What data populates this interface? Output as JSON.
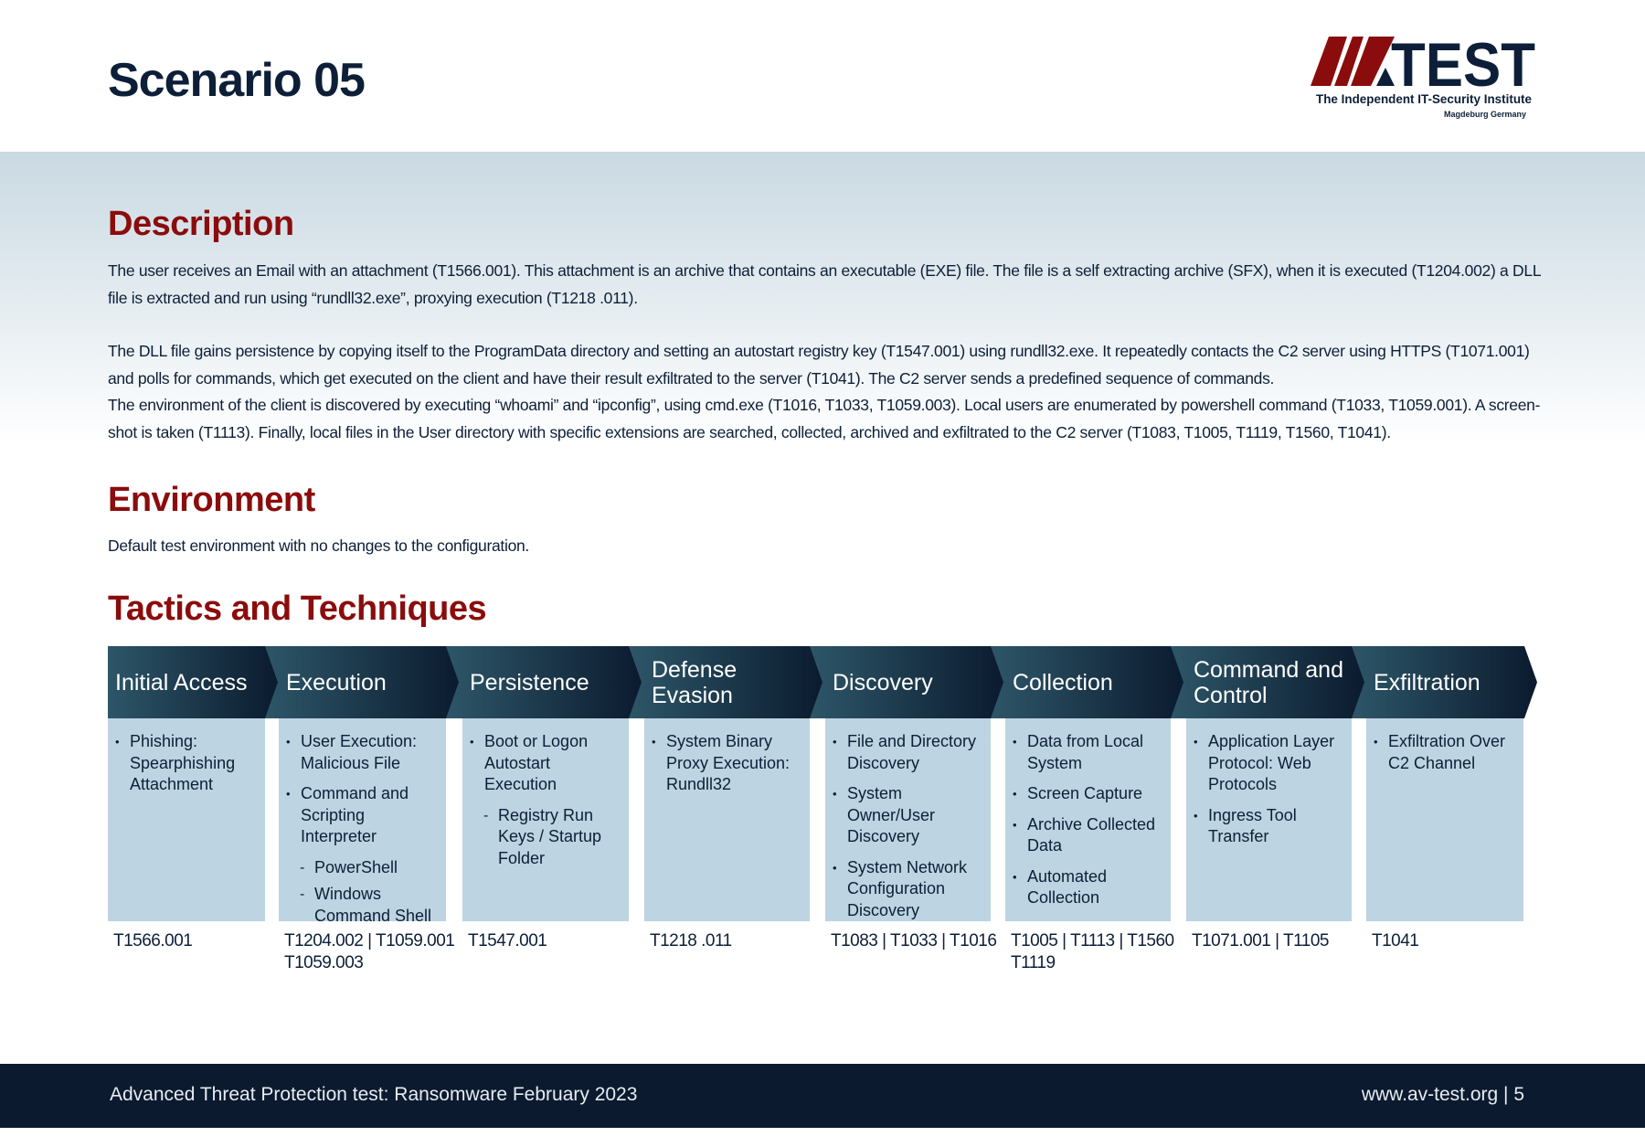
{
  "page_title": "Scenario 05",
  "logo": {
    "text": "AV-TEST",
    "tagline": "The Independent IT-Security Institute",
    "location": "Magdeburg Germany",
    "colors": {
      "red": "#8b0c0c",
      "navy": "#0d1f38"
    }
  },
  "description": {
    "heading": "Description",
    "p1": "The user receives an Email with an attachment (T1566.001). This attachment is an archive that contains an executable (EXE) file. The file is a self extracting archive (SFX), when it is executed (T1204.002) a DLL file is extracted and run using “rundll32.exe”, proxying execution (T1218 .011).",
    "p2": "The DLL file gains persistence by copying itself to the ProgramData directory and setting an autostart registry key (T1547.001) using rundll32.exe. It repeatedly contacts the C2 server using HTTPS (T1071.001) and polls for commands, which get executed on the client and have their result exfiltrated to the server (T1041). The C2 server sends a predefined sequence of commands.",
    "p3": "The environment of the client is discovered by executing “whoami” and “ipconfig”, using cmd.exe (T1016, T1033, T1059.003). Local users are enumerated by powershell command (T1033, T1059.001). A screen-shot is taken (T1113). Finally, local files in the User directory with specific extensions are searched, collected, archived and exfiltrated to the C2 server (T1083, T1005, T1119, T1560, T1041)."
  },
  "environment": {
    "heading": "Environment",
    "text": "Default test environment with no changes to the configuration."
  },
  "tactics": {
    "heading": "Tactics and Techniques",
    "columns": [
      {
        "title": "Initial Access",
        "items": [
          {
            "t": "Phishing: Spearphishing Attachment"
          }
        ],
        "codes": "T1566.001"
      },
      {
        "title": "Execution",
        "items": [
          {
            "t": "User Execution: Malicious File"
          },
          {
            "t": "Command and Scripting Interpreter"
          },
          {
            "t": "PowerShell",
            "sub": true
          },
          {
            "t": "Windows Command Shell",
            "sub": true
          }
        ],
        "codes": "T1204.002 | T1059.001 T1059.003"
      },
      {
        "title": "Persistence",
        "items": [
          {
            "t": "Boot or Logon Autostart Execution"
          },
          {
            "t": "Registry Run Keys / Startup Folder",
            "sub": true
          }
        ],
        "codes": "T1547.001"
      },
      {
        "title": "Defense Evasion",
        "items": [
          {
            "t": "System Binary Proxy Execution: Rundll32"
          }
        ],
        "codes": "T1218 .011"
      },
      {
        "title": "Discovery",
        "items": [
          {
            "t": "File and Directory Discovery"
          },
          {
            "t": "System Owner/User Discovery"
          },
          {
            "t": "System Network Configuration Discovery"
          }
        ],
        "codes": "T1083 | T1033 | T1016"
      },
      {
        "title": "Collection",
        "items": [
          {
            "t": "Data from Local System"
          },
          {
            "t": "Screen Capture"
          },
          {
            "t": "Archive Collected Data"
          },
          {
            "t": "Automated Collection"
          }
        ],
        "codes": "T1005 | T1113 | T1560 T1119"
      },
      {
        "title": "Command and Control",
        "items": [
          {
            "t": "Application Layer Protocol: Web Protocols"
          },
          {
            "t": "Ingress Tool Transfer"
          }
        ],
        "codes": "T1071.001 | T1105"
      },
      {
        "title": "Exfiltration",
        "items": [
          {
            "t": "Exfiltration Over C2 Channel"
          }
        ],
        "codes": "T1041"
      }
    ]
  },
  "footer": {
    "left": "Advanced Threat Protection test: Ransomware February 2023",
    "right": "www.av-test.org | 5"
  }
}
